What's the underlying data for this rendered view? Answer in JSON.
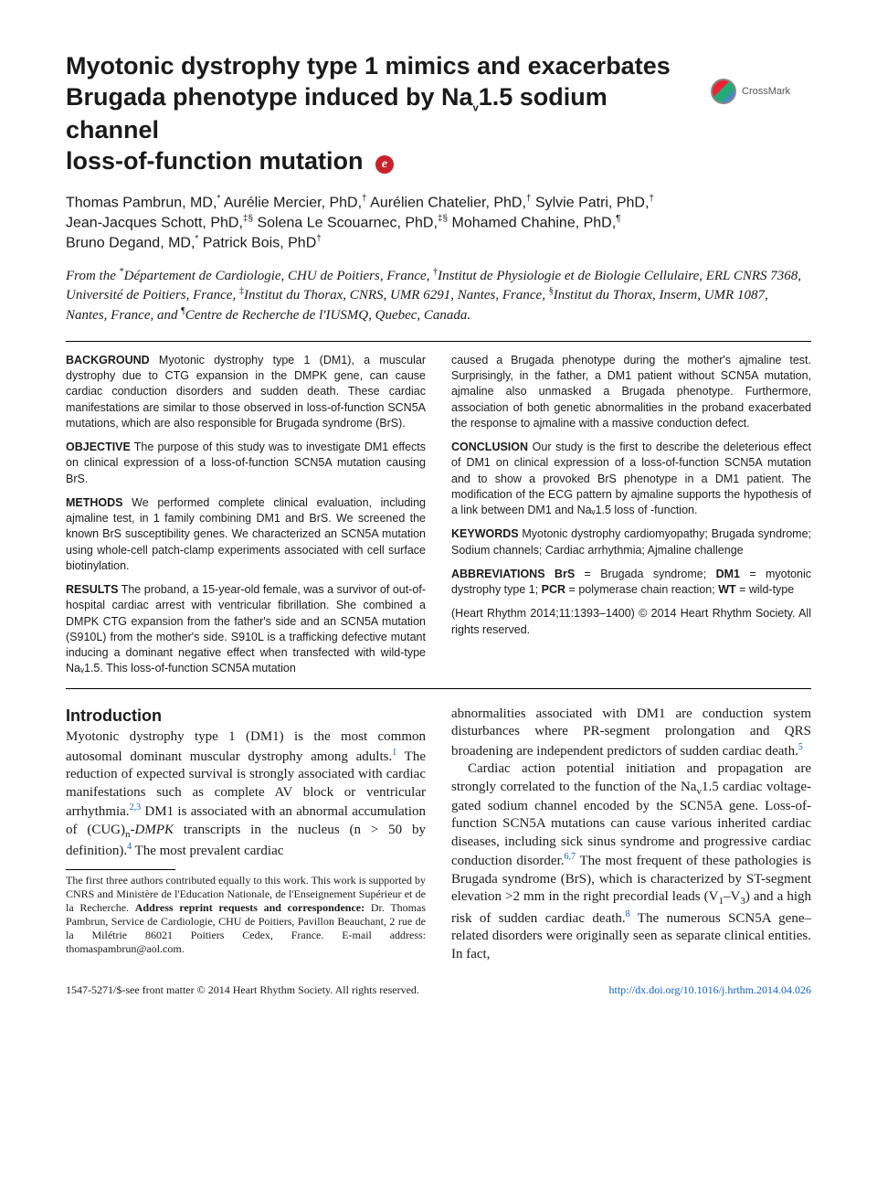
{
  "title_line1": "Myotonic dystrophy type 1 mimics and exacerbates",
  "title_line2": "Brugada phenotype induced by Na",
  "title_sub": "v",
  "title_line2b": "1.5 sodium channel",
  "title_line3": "loss-of-function mutation",
  "crossmark_label": "CrossMark",
  "authors_html_parts": {
    "a1": "Thomas Pambrun, MD,",
    "a1s": "*",
    "a2": " Aurélie Mercier, PhD,",
    "a2s": "†",
    "a3": " Aurélien Chatelier, PhD,",
    "a3s": "†",
    "a4": " Sylvie Patri, PhD,",
    "a4s": "†",
    "a5": "Jean-Jacques Schott, PhD,",
    "a5s": "‡§",
    "a6": " Solena Le Scouarnec, PhD,",
    "a6s": "‡§",
    "a7": " Mohamed Chahine, PhD,",
    "a7s": "¶",
    "a8": "Bruno Degand, MD,",
    "a8s": "*",
    "a9": " Patrick Bois, PhD",
    "a9s": "†"
  },
  "affil_lead": "From the ",
  "affil_s1": "*",
  "affil_t1": "Département de Cardiologie, CHU de Poitiers, France, ",
  "affil_s2": "†",
  "affil_t2": "Institut de Physiologie et de Biologie Cellulaire, ERL CNRS 7368, Université de Poitiers, France, ",
  "affil_s3": "‡",
  "affil_t3": "Institut du Thorax, CNRS, UMR 6291, Nantes, France, ",
  "affil_s4": "§",
  "affil_t4": "Institut du Thorax, Inserm, UMR 1087, Nantes, France, and ",
  "affil_s5": "¶",
  "affil_t5": "Centre de Recherche de l'IUSMQ, Quebec, Canada.",
  "abs": {
    "bg_k": "BACKGROUND",
    "bg": " Myotonic dystrophy type 1 (DM1), a muscular dystrophy due to CTG expansion in the DMPK gene, can cause cardiac conduction disorders and sudden death. These cardiac manifestations are similar to those observed in loss-of-function SCN5A mutations, which are also responsible for Brugada syndrome (BrS).",
    "obj_k": "OBJECTIVE",
    "obj": " The purpose of this study was to investigate DM1 effects on clinical expression of a loss-of-function SCN5A mutation causing BrS.",
    "met_k": "METHODS",
    "met": " We performed complete clinical evaluation, including ajmaline test, in 1 family combining DM1 and BrS. We screened the known BrS susceptibility genes. We characterized an SCN5A mutation using whole-cell patch-clamp experiments associated with cell surface biotinylation.",
    "res_k": "RESULTS",
    "res": " The proband, a 15-year-old female, was a survivor of out-of-hospital cardiac arrest with ventricular fibrillation. She combined a DMPK CTG expansion from the father's side and an SCN5A mutation (S910L) from the mother's side. S910L is a trafficking defective mutant inducing a dominant negative effect when transfected with wild-type Naᵥ1.5. This loss-of-function SCN5A mutation",
    "res2": "caused a Brugada phenotype during the mother's ajmaline test. Surprisingly, in the father, a DM1 patient without SCN5A mutation, ajmaline also unmasked a Brugada phenotype. Furthermore, association of both genetic abnormalities in the proband exacerbated the response to ajmaline with a massive conduction defect.",
    "con_k": "CONCLUSION",
    "con": " Our study is the first to describe the deleterious effect of DM1 on clinical expression of a loss-of-function SCN5A mutation and to show a provoked BrS phenotype in a DM1 patient. The modification of the ECG pattern by ajmaline supports the hypothesis of a link between DM1 and Naᵥ1.5 loss of -function.",
    "kw_k": "KEYWORDS",
    "kw": " Myotonic dystrophy cardiomyopathy; Brugada syndrome; Sodium channels; Cardiac arrhythmia; Ajmaline challenge",
    "ab_k": "ABBREVIATIONS",
    "ab1k": " BrS",
    "ab1v": " = Brugada syndrome; ",
    "ab2k": "DM1",
    "ab2v": " = myotonic dystrophy type 1; ",
    "ab3k": "PCR",
    "ab3v": " = polymerase chain reaction; ",
    "ab4k": "WT",
    "ab4v": " = wild-type",
    "cit": "(Heart Rhythm 2014;11:1393–1400) © 2014 Heart Rhythm Society. All rights reserved."
  },
  "intro_head": "Introduction",
  "intro_p1a": "Myotonic dystrophy type 1 (DM1) is the most common autosomal dominant muscular dystrophy among adults.",
  "intro_c1": "1",
  "intro_p1b": " The reduction of expected survival is strongly associated with cardiac manifestations such as complete AV block or ventricular arrhythmia.",
  "intro_c2": "2,3",
  "intro_p1c": " DM1 is associated with an abnormal accumulation of (CUG)",
  "intro_sub_n": "n",
  "intro_p1d": "DMPK",
  "intro_p1e": " transcripts in the nucleus (n > 50 by definition).",
  "intro_c3": "4",
  "intro_p1f": " The most prevalent cardiac",
  "intro_p2a": "abnormalities associated with DM1 are conduction system disturbances where PR-segment prolongation and QRS broadening are independent predictors of sudden cardiac death.",
  "intro_c4": "5",
  "intro_p3a": "Cardiac action potential initiation and propagation are strongly correlated to the function of the Na",
  "intro_p3b": "1.5 cardiac voltage-gated sodium channel encoded by the SCN5A gene. Loss-of-function SCN5A mutations can cause various inherited cardiac diseases, including sick sinus syndrome and progressive cardiac conduction disorder.",
  "intro_c5": "6,7",
  "intro_p3c": " The most frequent of these pathologies is Brugada syndrome (BrS), which is characterized by ST-segment elevation >2 mm in the right precordial leads (V",
  "intro_p3d": "–V",
  "intro_p3e": ") and a high risk of sudden cardiac death.",
  "intro_c6": "8",
  "intro_p3f": " The numerous SCN5A gene–related disorders were originally seen as separate clinical entities. In fact,",
  "v1": "1",
  "v3": "3",
  "vv": "v",
  "dash": "-",
  "footnote": "The first three authors contributed equally to this work. This work is supported by CNRS and Ministère de l'Education Nationale, de l'Enseignement Supérieur et de la Recherche. ",
  "footnote_bold": "Address reprint requests and correspondence:",
  "footnote2": " Dr. Thomas Pambrun, Service de Cardiologie, CHU de Poitiers, Pavillon Beauchant, 2 rue de la Milétrie 86021 Poitiers Cedex, France. E-mail address: thomaspambrun@aol.com.",
  "footer_left": "1547-5271/$-see front matter © 2014 Heart Rhythm Society. All rights reserved.",
  "footer_right": "http://dx.doi.org/10.1016/j.hrthm.2014.04.026"
}
